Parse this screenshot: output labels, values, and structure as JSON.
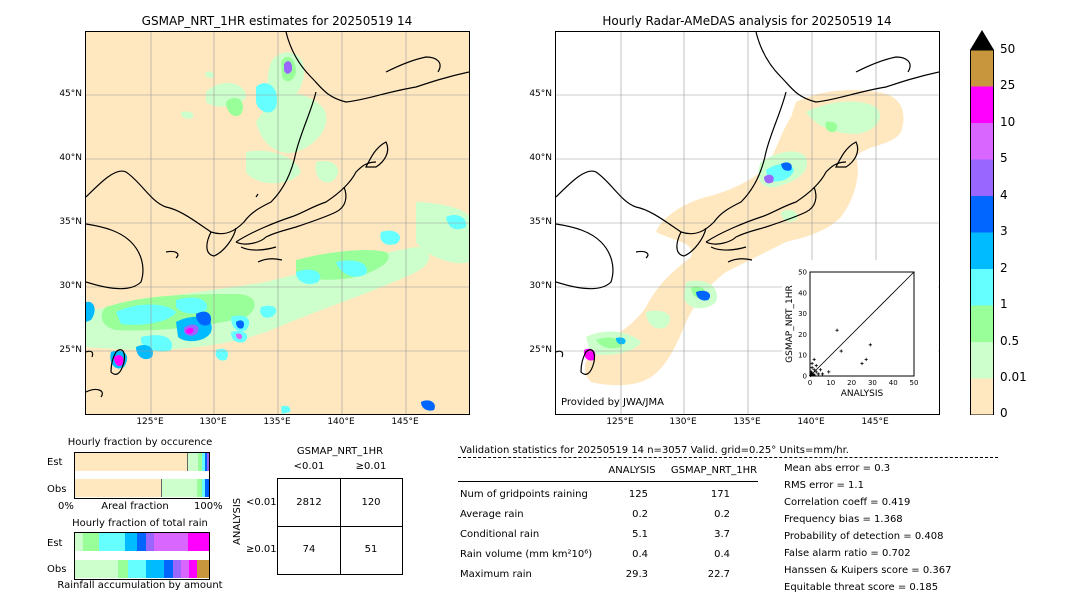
{
  "left_map": {
    "title": "GSMAP_NRT_1HR estimates for 20250519 14",
    "lat_labels": [
      "45°N",
      "40°N",
      "35°N",
      "30°N",
      "25°N"
    ],
    "lon_labels": [
      "125°E",
      "130°E",
      "135°E",
      "140°E",
      "145°E"
    ]
  },
  "right_map": {
    "title": "Hourly Radar-AMeDAS analysis for 20250519 14",
    "lat_labels": [
      "45°N",
      "40°N",
      "35°N",
      "30°N",
      "25°N"
    ],
    "lon_labels": [
      "125°E",
      "130°E",
      "135°E",
      "140°E",
      "145°E"
    ],
    "credit": "Provided by JWA/JMA"
  },
  "colorbar": {
    "labels": [
      "50",
      "25",
      "10",
      "5",
      "4",
      "3",
      "2",
      "1",
      "0.5",
      "0.01",
      "0"
    ],
    "colors": [
      "#c8963c",
      "#ff00ff",
      "#d966ff",
      "#9966ff",
      "#0066ff",
      "#00bbff",
      "#66ffff",
      "#99ff99",
      "#ccffcc",
      "#ffe8c0"
    ]
  },
  "fraction_occurrence": {
    "title": "Hourly fraction by occurence",
    "row_est": "Est",
    "row_obs": "Obs",
    "axis_left": "0%",
    "axis_mid": "Areal fraction",
    "axis_right": "100%"
  },
  "fraction_total": {
    "title": "Hourly fraction of total rain",
    "row_est": "Est",
    "row_obs": "Obs",
    "footer": "Rainfall accumulation by amount"
  },
  "contingency": {
    "title": "GSMAP_NRT_1HR",
    "col_lt": "<0.01",
    "col_ge": "≥0.01",
    "side_label": "ANALYSIS",
    "row_lt": "<0.01",
    "row_ge": "≥0.01",
    "a": "2812",
    "b": "120",
    "c": "74",
    "d": "51"
  },
  "validation": {
    "header": "Validation statistics for 20250519 14  n=3057 Valid. grid=0.25° Units=mm/hr.",
    "col_analysis": "ANALYSIS",
    "col_gsmap": "GSMAP_NRT_1HR",
    "rows": [
      {
        "label": "Num of gridpoints raining",
        "analysis": "125",
        "gsmap": "171"
      },
      {
        "label": "Average rain",
        "analysis": "0.2",
        "gsmap": "0.2"
      },
      {
        "label": "Conditional rain",
        "analysis": "5.1",
        "gsmap": "3.7"
      },
      {
        "label": "Rain volume (mm km²10⁶)",
        "analysis": "0.4",
        "gsmap": "0.4"
      },
      {
        "label": "Maximum rain",
        "analysis": "29.3",
        "gsmap": "22.7"
      }
    ],
    "scores": [
      "Mean abs error =    0.3",
      "RMS error =    1.1",
      "Correlation coeff =  0.419",
      "Frequency bias =  1.368",
      "Probability of detection =  0.408",
      "False alarm ratio =  0.702",
      "Hanssen & Kuipers score =  0.367",
      "Equitable threat score =  0.185"
    ]
  },
  "chart_data": {
    "type": "scatter",
    "xlabel": "ANALYSIS",
    "ylabel": "GSMAP_NRT_1HR",
    "xlim": [
      0,
      50
    ],
    "ylim": [
      0,
      50
    ],
    "ticks": [
      "0",
      "10",
      "20",
      "30",
      "40",
      "50"
    ],
    "points": [
      [
        1,
        1
      ],
      [
        2,
        3
      ],
      [
        3,
        2
      ],
      [
        1,
        4
      ],
      [
        4,
        1
      ],
      [
        2,
        0.5
      ],
      [
        0.5,
        2
      ],
      [
        3,
        5
      ],
      [
        5,
        3
      ],
      [
        6,
        1
      ],
      [
        1,
        6
      ],
      [
        2,
        8
      ],
      [
        9,
        2
      ],
      [
        13,
        22
      ],
      [
        15,
        12
      ],
      [
        27,
        8
      ],
      [
        29,
        15
      ],
      [
        25,
        6
      ],
      [
        0.3,
        0.3
      ],
      [
        0.8,
        1.5
      ],
      [
        1.5,
        0.8
      ]
    ]
  }
}
